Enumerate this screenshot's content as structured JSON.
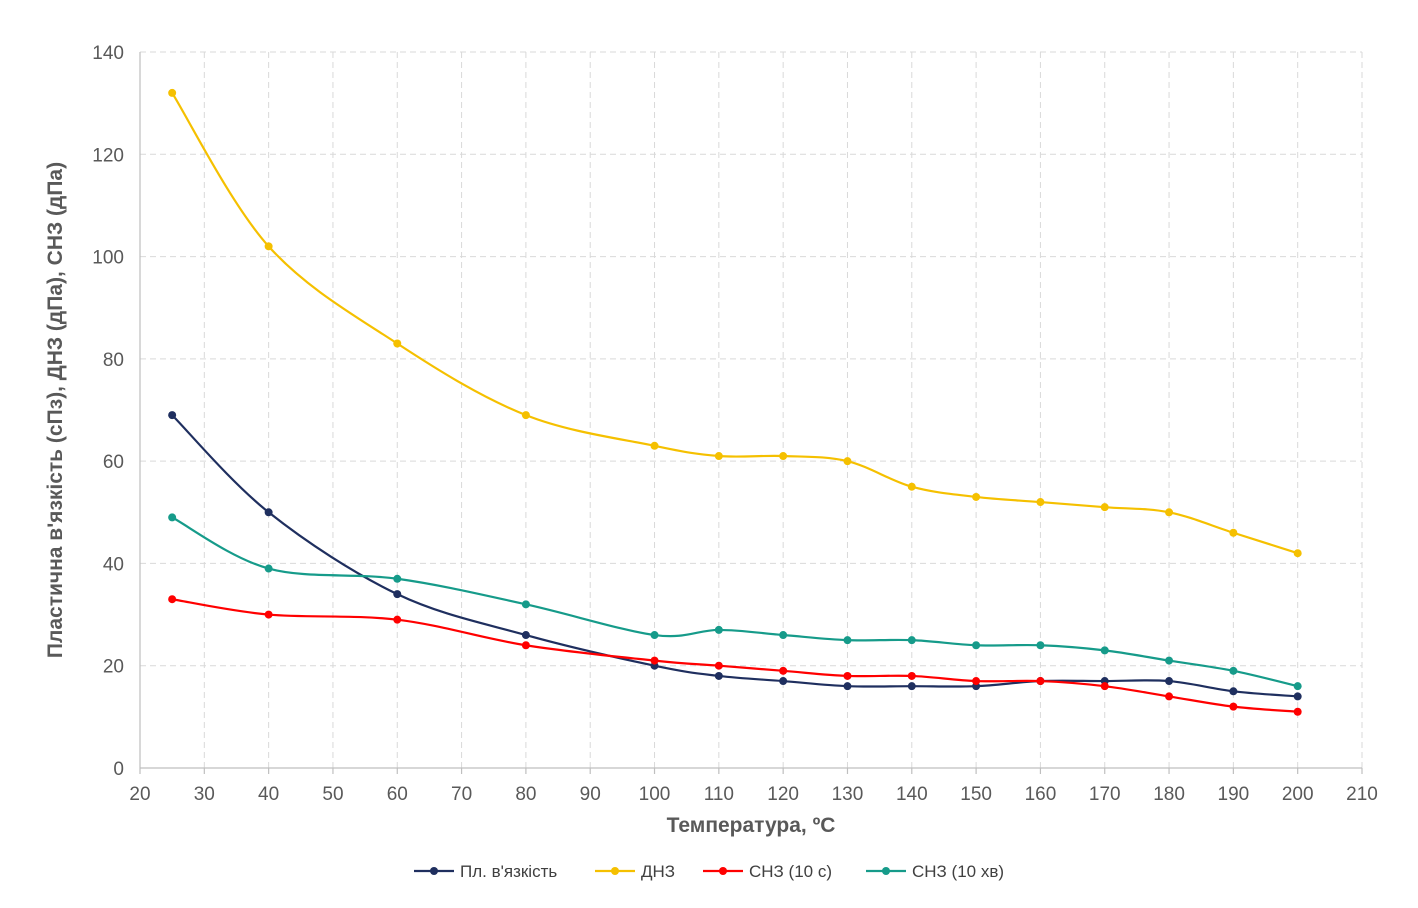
{
  "chart_data": {
    "type": "line",
    "title": "",
    "xlabel": "Температура, ºC",
    "ylabel": "Пластична в'язкість (сПз), ДНЗ (дПа), СНЗ (дПа)",
    "xlim": [
      20,
      210
    ],
    "ylim": [
      0,
      140
    ],
    "xticks": [
      20,
      30,
      40,
      50,
      60,
      70,
      80,
      90,
      100,
      110,
      120,
      130,
      140,
      150,
      160,
      170,
      180,
      190,
      200,
      210
    ],
    "yticks": [
      0,
      20,
      40,
      60,
      80,
      100,
      120,
      140
    ],
    "grid": true,
    "legend_position": "bottom",
    "x": [
      25,
      40,
      60,
      80,
      100,
      110,
      120,
      130,
      140,
      150,
      160,
      170,
      180,
      190,
      200
    ],
    "series": [
      {
        "name": "Пл. в'язкість",
        "color": "#1f2f5f",
        "values": [
          69,
          50,
          34,
          26,
          20,
          18,
          17,
          16,
          16,
          16,
          17,
          17,
          17,
          15,
          14
        ]
      },
      {
        "name": "ДНЗ",
        "color": "#f5c000",
        "values": [
          132,
          102,
          83,
          69,
          63,
          61,
          61,
          60,
          55,
          53,
          52,
          51,
          50,
          46,
          42
        ]
      },
      {
        "name": "СНЗ (10 с)",
        "color": "#ff0000",
        "values": [
          33,
          30,
          29,
          24,
          21,
          20,
          19,
          18,
          18,
          17,
          17,
          16,
          14,
          12,
          11
        ]
      },
      {
        "name": "СНЗ (10 хв)",
        "color": "#169b8a",
        "values": [
          49,
          39,
          37,
          32,
          26,
          27,
          26,
          25,
          25,
          24,
          24,
          23,
          21,
          19,
          16
        ]
      }
    ]
  }
}
